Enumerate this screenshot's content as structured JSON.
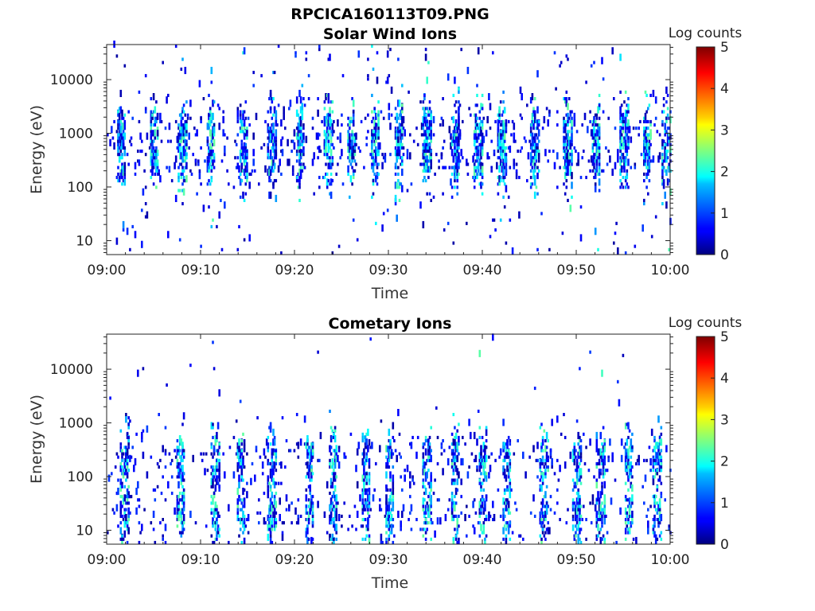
{
  "figure": {
    "title": "RPCICA160113T09.PNG"
  },
  "chart_data": [
    {
      "type": "heatmap",
      "title": "Solar Wind Ions",
      "xlabel": "Time",
      "ylabel": "Energy (eV)",
      "xlim": [
        "09:00",
        "10:00"
      ],
      "xticks": [
        "09:00",
        "09:10",
        "09:20",
        "09:30",
        "09:40",
        "09:50",
        "10:00"
      ],
      "ylim": [
        5.5,
        45000
      ],
      "yscale": "log",
      "yticks": [
        "10",
        "100",
        "1000",
        "10000"
      ],
      "colorbar": {
        "label": "Log counts",
        "range": [
          0,
          5
        ],
        "ticks": [
          "0",
          "1",
          "2",
          "3",
          "4",
          "5"
        ],
        "colormap": "jet"
      },
      "hot_times_min": [
        1.5,
        5,
        8,
        11,
        14.5,
        17.5,
        20.5,
        23.5,
        26,
        28.5,
        31,
        34,
        37,
        39.5,
        42,
        45.5,
        49,
        52,
        55,
        57.5,
        59.5
      ],
      "band_levels_eV": [
        300,
        1200
      ]
    },
    {
      "type": "heatmap",
      "title": "Cometary Ions",
      "xlabel": "Time",
      "ylabel": "Energy (eV)",
      "xlim": [
        "09:00",
        "10:00"
      ],
      "xticks": [
        "09:00",
        "09:10",
        "09:20",
        "09:30",
        "09:40",
        "09:50",
        "10:00"
      ],
      "ylim": [
        5.5,
        45000
      ],
      "yscale": "log",
      "yticks": [
        "10",
        "100",
        "1000",
        "10000"
      ],
      "colorbar": {
        "label": "Log counts",
        "range": [
          0,
          5
        ],
        "ticks": [
          "0",
          "1",
          "2",
          "3",
          "4",
          "5"
        ],
        "colormap": "jet"
      },
      "hot_times_min": [
        1.8,
        7.8,
        11.5,
        14.2,
        17.5,
        21.5,
        24,
        27.5,
        30,
        34,
        37,
        40,
        42.5,
        46.5,
        50,
        52.5,
        55.5,
        58.5
      ],
      "band_levels_eV": [
        20,
        200
      ]
    }
  ],
  "colors": {
    "axis": "#222222",
    "background": "#ffffff"
  }
}
